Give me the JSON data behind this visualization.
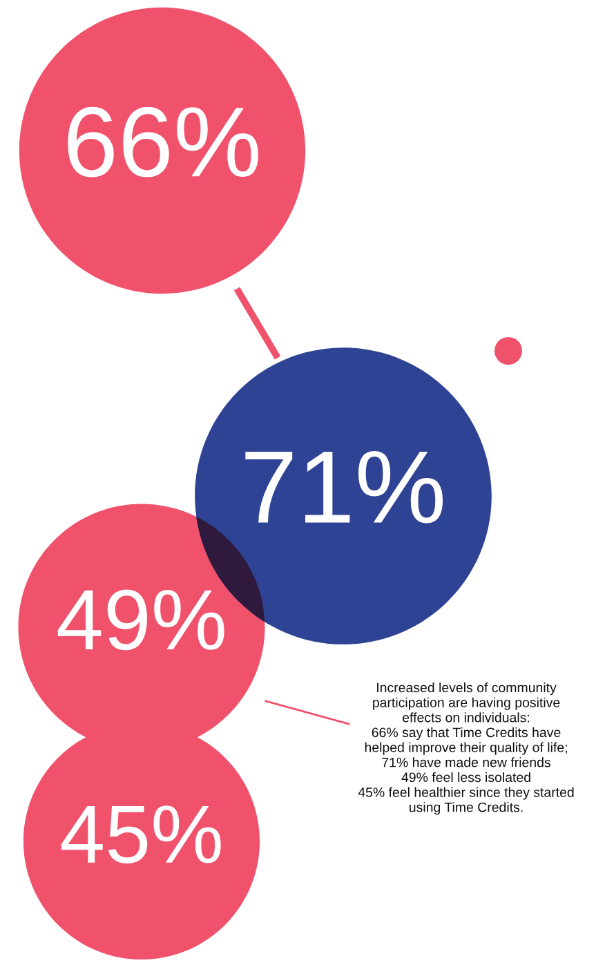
{
  "chart_data": {
    "type": "other",
    "categories": [
      null,
      null,
      null,
      null
    ],
    "values": [
      66,
      71,
      49,
      45
    ],
    "value_labels": [
      "66%",
      "71%",
      "49%",
      "45%"
    ],
    "colors": [
      "#f0526c",
      "#2e4393",
      "#f0526c",
      "#f0526c"
    ],
    "annotations": [
      "Increased levels of community\nparticipation are having positive\neffects on individuals:\n66% say that Time Credits have\nhelped improve their quality of life;\n71% have made new friends\n49% feel less isolated\n45% feel healthier since they started\nusing Time Credits."
    ]
  }
}
